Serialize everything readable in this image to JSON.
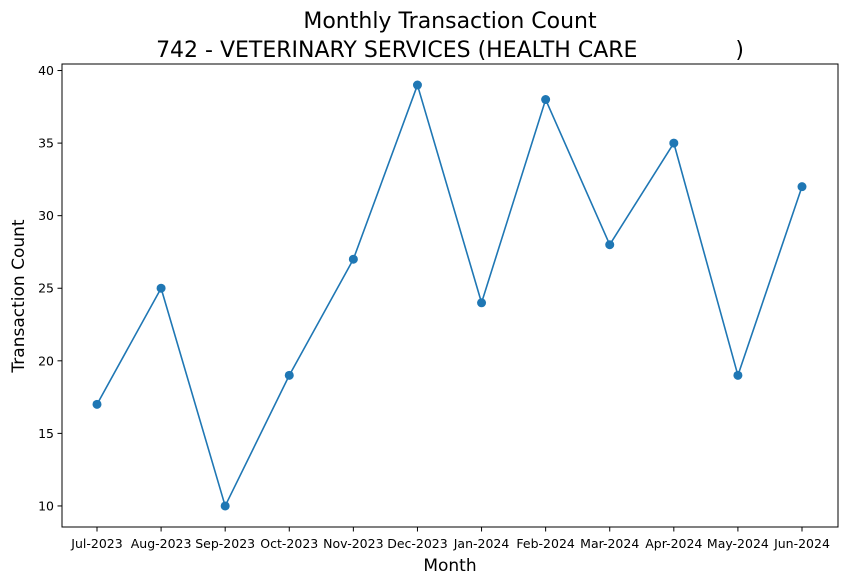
{
  "chart_data": {
    "type": "line",
    "title_line1": "Monthly Transaction Count",
    "title_line2": "742 - VETERINARY SERVICES (HEALTH CARE              )",
    "xlabel": "Month",
    "ylabel": "Transaction Count",
    "categories": [
      "Jul-2023",
      "Aug-2023",
      "Sep-2023",
      "Oct-2023",
      "Nov-2023",
      "Dec-2023",
      "Jan-2024",
      "Feb-2024",
      "Mar-2024",
      "Apr-2024",
      "May-2024",
      "Jun-2024"
    ],
    "series": [
      {
        "values": [
          17,
          25,
          10,
          19,
          27,
          39,
          24,
          38,
          28,
          35,
          19,
          32
        ],
        "color": "#1f77b4"
      }
    ],
    "ylim": [
      8.55,
      40.45
    ],
    "yticks": [
      10,
      15,
      20,
      25,
      30,
      35,
      40
    ],
    "grid": false,
    "marker": "circle"
  }
}
